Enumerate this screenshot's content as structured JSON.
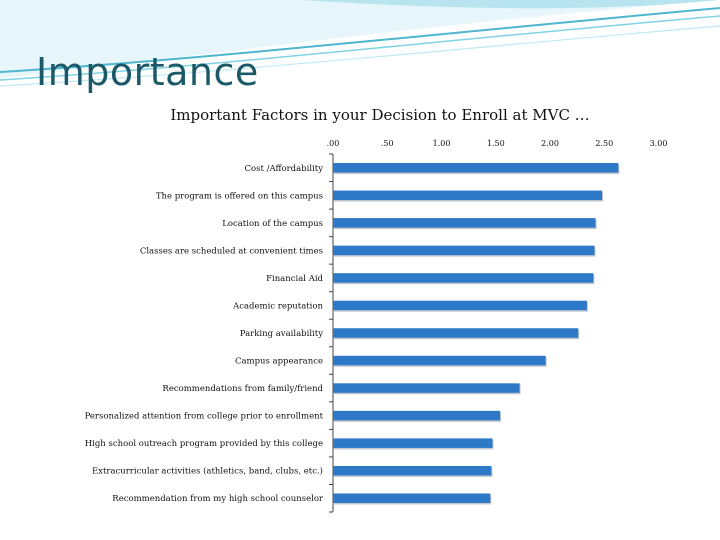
{
  "slide": {
    "title": "Importance",
    "accent_color": "#1b5868",
    "wave_colors": [
      "#7fd3e4",
      "#4fb6cf",
      "#bfe9f2"
    ]
  },
  "chart_data": {
    "type": "bar",
    "orientation": "horizontal",
    "title": "Important Factors in your Decision to Enroll at MVC …",
    "xlabel": "",
    "ylabel": "",
    "xlim": [
      0,
      3.0
    ],
    "ticks": [
      0,
      0.5,
      1.0,
      1.5,
      2.0,
      2.5,
      3.0
    ],
    "tick_labels": [
      ".00",
      ".50",
      "1.00",
      "1.50",
      "2.00",
      "2.50",
      "3.00"
    ],
    "grid": false,
    "legend": "none",
    "bar_color": "#2e78c8",
    "categories": [
      "Cost /Affordability",
      "The program is offered on this campus",
      "Location of the campus",
      "Classes are scheduled at convenient times",
      "Financial Aid",
      "Academic reputation",
      "Parking availability",
      "Campus appearance",
      "Recommendations from family/friend",
      "Personalized attention from college prior to enrollment",
      "High school outreach program provided by this college",
      "Extracurricular activities (athletics, band, clubs, etc.)",
      "Recommendation from my high school counselor"
    ],
    "values": [
      2.63,
      2.48,
      2.42,
      2.41,
      2.4,
      2.34,
      2.26,
      1.96,
      1.72,
      1.54,
      1.47,
      1.46,
      1.45
    ]
  }
}
